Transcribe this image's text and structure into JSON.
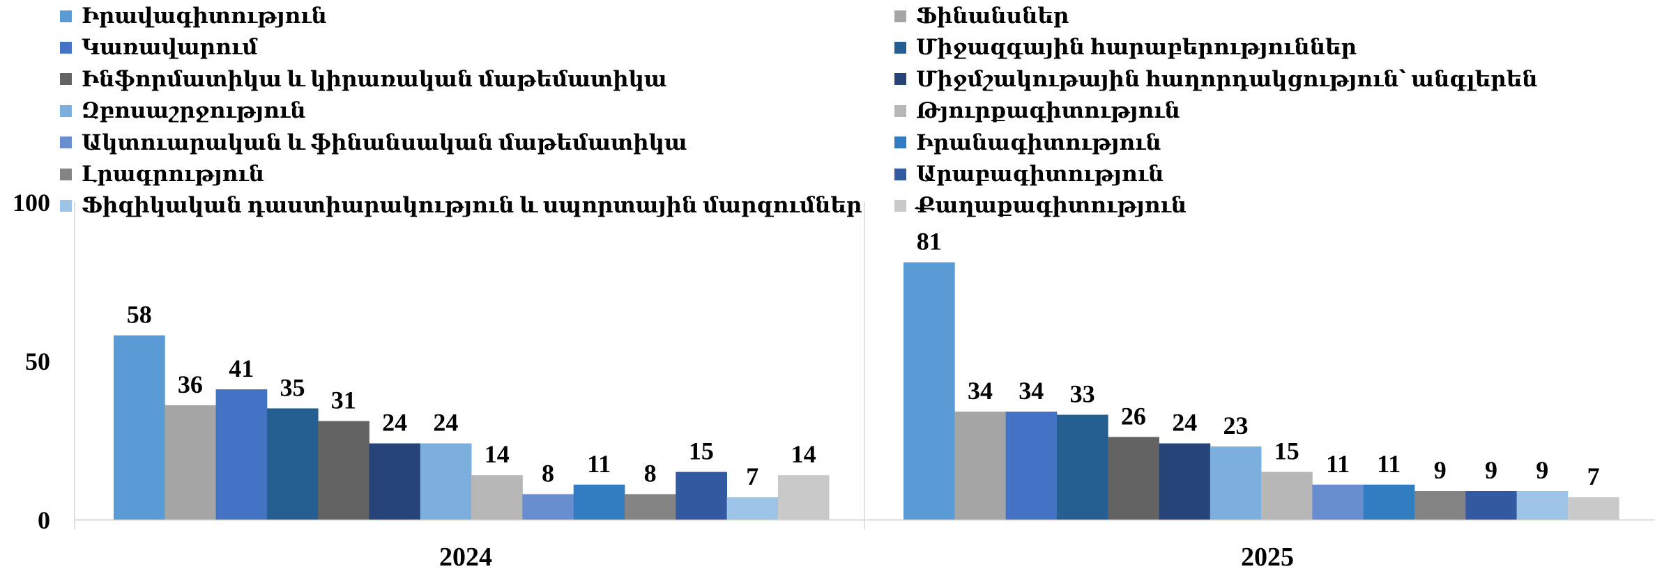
{
  "chart_data": {
    "type": "bar",
    "categories": [
      "2024",
      "2025"
    ],
    "ylim": [
      0,
      100
    ],
    "yticks": [
      0,
      50,
      100
    ],
    "grid": false,
    "legend_position": "top",
    "groups": [
      {
        "category": "2024",
        "bars": [
          {
            "name": "Իրավագիտություն",
            "value": 58,
            "color": "#5b9bd5"
          },
          {
            "name": "Ֆինանսներ",
            "value": 36,
            "color": "#a5a5a5"
          },
          {
            "name": "Կառավարում",
            "value": 41,
            "color": "#4472c4"
          },
          {
            "name": "Միջազգային հարաբերություններ",
            "value": 35,
            "color": "#255e91"
          },
          {
            "name": "Ինֆորմատիկա և կիրառական մաթեմատիկա",
            "value": 31,
            "color": "#636363"
          },
          {
            "name": "Միջմշակութային հաղորդակցություն՝ անգլերեն",
            "value": 24,
            "color": "#264478"
          },
          {
            "name": "Զբոսաշրջություն",
            "value": 24,
            "color": "#7cafdd"
          },
          {
            "name": "Թյուրքագիտություն",
            "value": 14,
            "color": "#b7b7b7"
          },
          {
            "name": "Ակտուարական և ֆինանսական մաթեմատիկա",
            "value": 8,
            "color": "#698ed0"
          },
          {
            "name": "Իրանագիտություն",
            "value": 11,
            "color": "#327dc2"
          },
          {
            "name": "Լրագրություն",
            "value": 8,
            "color": "#848484"
          },
          {
            "name": "Արաբագիտություն",
            "value": 15,
            "color": "#335aa1"
          },
          {
            "name": "Ֆիզիկական դաստիարակություն և սպորտային մարզումներ",
            "value": 7,
            "color": "#9dc3e6"
          },
          {
            "name": "Քաղաքագիտություն",
            "value": 14,
            "color": "#c9c9c9"
          }
        ]
      },
      {
        "category": "2025",
        "bars": [
          {
            "name": "Իրավագիտություն",
            "value": 81,
            "color": "#5b9bd5"
          },
          {
            "name": "Ֆինանսներ",
            "value": 34,
            "color": "#a5a5a5"
          },
          {
            "name": "Կառավարում",
            "value": 34,
            "color": "#4472c4"
          },
          {
            "name": "Միջազգային հարաբերություններ",
            "value": 33,
            "color": "#255e91"
          },
          {
            "name": "Ինֆորմատիկա և կիրառական մաթեմատիկա",
            "value": 26,
            "color": "#636363"
          },
          {
            "name": "Միջմշակութային հաղորդակցություն՝ անգլերեն",
            "value": 24,
            "color": "#264478"
          },
          {
            "name": "Զբոսաշրջություն",
            "value": 23,
            "color": "#7cafdd"
          },
          {
            "name": "Թյուրքագիտություն",
            "value": 15,
            "color": "#b7b7b7"
          },
          {
            "name": "Ակտուարական և ֆինանսական մաթեմատիկա",
            "value": 11,
            "color": "#698ed0"
          },
          {
            "name": "Իրանագիտություն",
            "value": 11,
            "color": "#327dc2"
          },
          {
            "name": "Լրագրություն",
            "value": 9,
            "color": "#848484"
          },
          {
            "name": "Արաբագիտություն",
            "value": 9,
            "color": "#335aa1"
          },
          {
            "name": "Ֆիզիկական դաստիարակություն և սպորտային մարզումներ",
            "value": 9,
            "color": "#9dc3e6"
          },
          {
            "name": "Քաղաքագիտություն",
            "value": 7,
            "color": "#c9c9c9"
          }
        ]
      }
    ],
    "legend": {
      "left_column": [
        {
          "label": "Իրավագիտություն",
          "color": "#5b9bd5"
        },
        {
          "label": "Կառավարում",
          "color": "#4472c4"
        },
        {
          "label": "Ինֆորմատիկա և կիրառական մաթեմատիկա",
          "color": "#636363"
        },
        {
          "label": "Զբոսաշրջություն",
          "color": "#7cafdd"
        },
        {
          "label": "Ակտուարական և ֆինանսական մաթեմատիկա",
          "color": "#698ed0"
        },
        {
          "label": "Լրագրություն",
          "color": "#848484"
        },
        {
          "label": "Ֆիզիկական դաստիարակություն և սպորտային մարզումներ",
          "color": "#9dc3e6"
        }
      ],
      "right_column": [
        {
          "label": "Ֆինանսներ",
          "color": "#a5a5a5"
        },
        {
          "label": "Միջազգային հարաբերություններ",
          "color": "#255e91"
        },
        {
          "label": "Միջմշակութային հաղորդակցություն՝ անգլերեն",
          "color": "#264478"
        },
        {
          "label": "Թյուրքագիտություն",
          "color": "#b7b7b7"
        },
        {
          "label": "Իրանագիտություն",
          "color": "#327dc2"
        },
        {
          "label": "Արաբագիտություն",
          "color": "#335aa1"
        },
        {
          "label": "Քաղաքագիտություն",
          "color": "#c9c9c9"
        }
      ]
    }
  }
}
